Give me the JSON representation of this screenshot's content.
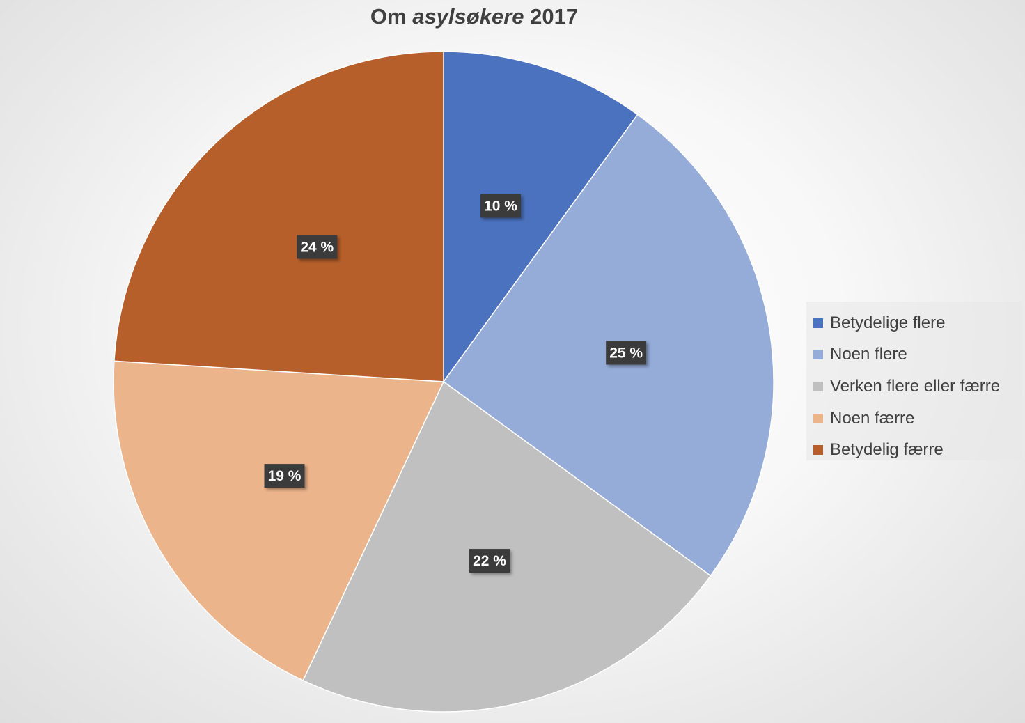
{
  "chart_data": {
    "type": "pie",
    "title_parts": [
      "Om ",
      "asylsøkere",
      " 2017"
    ],
    "categories": [
      "Betydelige flere",
      "Noen flere",
      "Verken flere eller færre",
      "Noen færre",
      "Betydelig færre"
    ],
    "values": [
      10,
      25,
      22,
      19,
      24
    ],
    "value_labels": [
      "10 %",
      "25 %",
      "22 %",
      "19 %",
      "24 %"
    ],
    "colors": [
      "#4a72be",
      "#95acd9",
      "#c0c0c0",
      "#ecb48b",
      "#b65f2a"
    ],
    "legend_position": "right"
  }
}
